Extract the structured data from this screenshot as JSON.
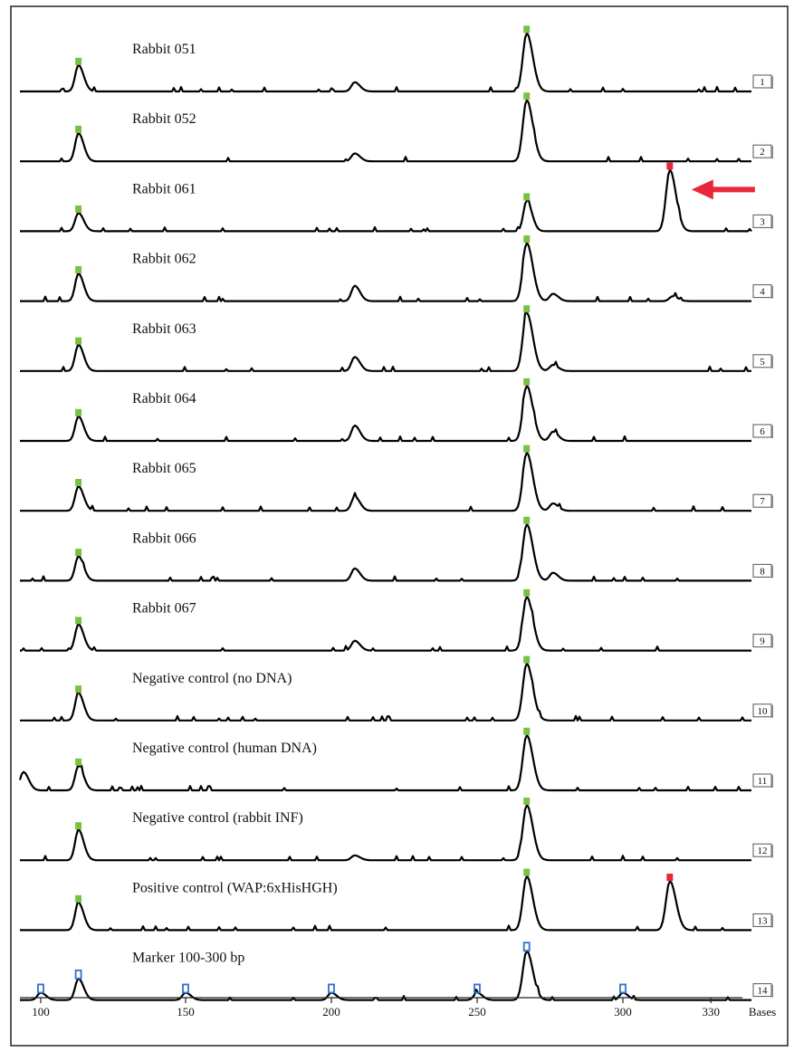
{
  "chart_data": {
    "type": "line",
    "x_unit_label": "Bases",
    "x_ticks": [
      100,
      150,
      200,
      250,
      300,
      330
    ],
    "xlim": [
      94,
      350
    ],
    "colors": {
      "peak_marker_green": "#7ac143",
      "peak_marker_red": "#e8273b",
      "marker_peak_blue": "#2f6fd0",
      "arrow": "#e8273b",
      "trace": "#000000"
    },
    "annotation": {
      "type": "arrow",
      "color": "red",
      "points_to_lane": "3",
      "points_to_base": 316
    },
    "lanes": [
      {
        "number": "1",
        "label": "Rabbit 051",
        "peaks": [
          {
            "base": 113,
            "h": 0.43,
            "marker": "green"
          },
          {
            "base": 208,
            "h": 0.15,
            "marker": null
          },
          {
            "base": 267,
            "h": 0.95,
            "marker": "green"
          }
        ]
      },
      {
        "number": "2",
        "label": "Rabbit 052",
        "peaks": [
          {
            "base": 113,
            "h": 0.46,
            "marker": "green"
          },
          {
            "base": 208,
            "h": 0.13,
            "marker": null
          },
          {
            "base": 267,
            "h": 1.0,
            "marker": "green"
          }
        ]
      },
      {
        "number": "3",
        "label": "Rabbit 061",
        "peaks": [
          {
            "base": 113,
            "h": 0.3,
            "marker": "green"
          },
          {
            "base": 267,
            "h": 0.5,
            "marker": "green"
          },
          {
            "base": 316,
            "h": 1.0,
            "marker": "red"
          }
        ]
      },
      {
        "number": "4",
        "label": "Rabbit 062",
        "peaks": [
          {
            "base": 113,
            "h": 0.45,
            "marker": "green"
          },
          {
            "base": 208,
            "h": 0.25,
            "marker": null
          },
          {
            "base": 267,
            "h": 0.95,
            "marker": "green"
          },
          {
            "base": 276,
            "h": 0.12,
            "marker": null
          },
          {
            "base": 317,
            "h": 0.08,
            "marker": null
          }
        ]
      },
      {
        "number": "5",
        "label": "Rabbit 063",
        "peaks": [
          {
            "base": 113,
            "h": 0.43,
            "marker": "green"
          },
          {
            "base": 208,
            "h": 0.23,
            "marker": null
          },
          {
            "base": 267,
            "h": 0.95,
            "marker": "green"
          },
          {
            "base": 276,
            "h": 0.1,
            "marker": null
          }
        ]
      },
      {
        "number": "6",
        "label": "Rabbit 064",
        "peaks": [
          {
            "base": 113,
            "h": 0.4,
            "marker": "green"
          },
          {
            "base": 208,
            "h": 0.25,
            "marker": null
          },
          {
            "base": 267,
            "h": 0.9,
            "marker": "green"
          },
          {
            "base": 276,
            "h": 0.15,
            "marker": null
          }
        ]
      },
      {
        "number": "7",
        "label": "Rabbit 065",
        "peaks": [
          {
            "base": 113,
            "h": 0.4,
            "marker": "green"
          },
          {
            "base": 208,
            "h": 0.23,
            "marker": null
          },
          {
            "base": 267,
            "h": 0.95,
            "marker": "green"
          },
          {
            "base": 276,
            "h": 0.12,
            "marker": null
          }
        ]
      },
      {
        "number": "8",
        "label": "Rabbit 066",
        "peaks": [
          {
            "base": 113,
            "h": 0.4,
            "marker": "green"
          },
          {
            "base": 208,
            "h": 0.2,
            "marker": null
          },
          {
            "base": 267,
            "h": 0.92,
            "marker": "green"
          },
          {
            "base": 276,
            "h": 0.13,
            "marker": null
          }
        ]
      },
      {
        "number": "9",
        "label": "Rabbit 067",
        "peaks": [
          {
            "base": 113,
            "h": 0.43,
            "marker": "green"
          },
          {
            "base": 208,
            "h": 0.16,
            "marker": null
          },
          {
            "base": 267,
            "h": 0.88,
            "marker": "green"
          }
        ]
      },
      {
        "number": "10",
        "label": "Negative control (no DNA)",
        "peaks": [
          {
            "base": 113,
            "h": 0.45,
            "marker": "green"
          },
          {
            "base": 267,
            "h": 0.93,
            "marker": "green"
          }
        ]
      },
      {
        "number": "11",
        "label": "Negative control (human DNA)",
        "peaks": [
          {
            "base": 95,
            "h": 0.3,
            "marker": null
          },
          {
            "base": 113,
            "h": 0.4,
            "marker": "green"
          },
          {
            "base": 267,
            "h": 0.9,
            "marker": "green"
          }
        ]
      },
      {
        "number": "12",
        "label": "Negative control (rabbit INF)",
        "peaks": [
          {
            "base": 113,
            "h": 0.5,
            "marker": "green"
          },
          {
            "base": 208,
            "h": 0.08,
            "marker": null
          },
          {
            "base": 267,
            "h": 0.9,
            "marker": "green"
          }
        ]
      },
      {
        "number": "13",
        "label": "Positive control (WAP:6xHisHGH)",
        "peaks": [
          {
            "base": 113,
            "h": 0.45,
            "marker": "green"
          },
          {
            "base": 267,
            "h": 0.88,
            "marker": "green"
          },
          {
            "base": 316,
            "h": 0.8,
            "marker": "red"
          }
        ]
      },
      {
        "number": "14",
        "label": "Marker 100-300 bp",
        "peaks": [
          {
            "base": 100,
            "h": 0.12,
            "marker": "blue"
          },
          {
            "base": 113,
            "h": 0.35,
            "marker": "blue"
          },
          {
            "base": 150,
            "h": 0.12,
            "marker": "blue"
          },
          {
            "base": 200,
            "h": 0.12,
            "marker": "blue"
          },
          {
            "base": 250,
            "h": 0.12,
            "marker": "blue"
          },
          {
            "base": 267,
            "h": 0.8,
            "marker": "blue"
          },
          {
            "base": 300,
            "h": 0.12,
            "marker": "blue"
          }
        ]
      }
    ]
  }
}
